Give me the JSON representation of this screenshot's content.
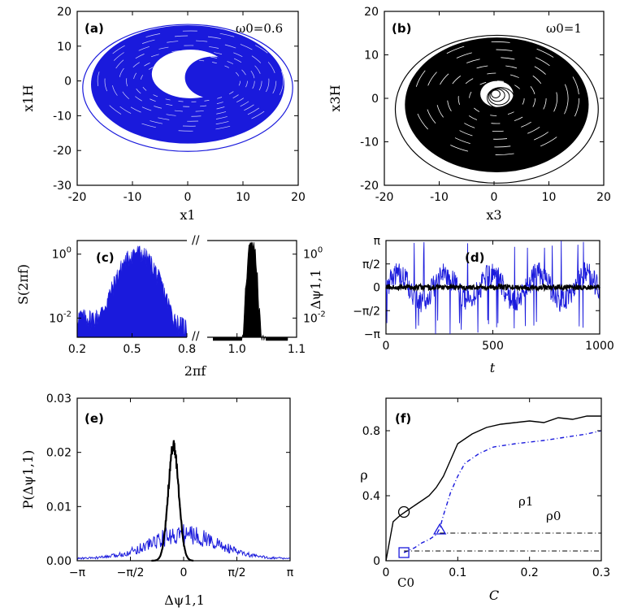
{
  "chart_data": [
    {
      "panel": "(a)",
      "type": "scatter",
      "annotation": "ω0=0.6",
      "xlabel": "x1",
      "ylabel": "x1H",
      "xlim": [
        -20,
        20
      ],
      "ylim": [
        -30,
        20
      ],
      "xticks": [
        "-20",
        "-10",
        "0",
        "10",
        "20"
      ],
      "yticks": [
        "-30",
        "-20",
        "-10",
        "0",
        "10",
        "20"
      ],
      "attractor_color": "#1a1adc",
      "series": [
        {
          "values": "phase-plane attractor, x1 in [-19,19], x1H in [-20,16]"
        }
      ]
    },
    {
      "panel": "(b)",
      "type": "scatter",
      "annotation": "ω0=1",
      "xlabel": "x3",
      "ylabel": "x3H",
      "xlim": [
        -20,
        20
      ],
      "ylim": [
        -20,
        20
      ],
      "xticks": [
        "-20",
        "-10",
        "0",
        "10",
        "20"
      ],
      "yticks": [
        "-20",
        "-10",
        "0",
        "10",
        "20"
      ],
      "attractor_color": "#000000",
      "series": [
        {
          "values": "phase-plane attractor, x3 in [-18,19], x3H in [-19,14]"
        }
      ]
    },
    {
      "panel": "(c)",
      "type": "line",
      "xlabel": "2πf",
      "ylabel": "S(2πf)",
      "ylabel_right": "",
      "yscale": "log",
      "xlim_left": [
        0.2,
        0.8
      ],
      "xlim_right": [
        0.95,
        1.1
      ],
      "xticks": [
        "0.2",
        "0.5",
        "0.8",
        "1.0",
        "1.1"
      ],
      "yticks_left": [
        "10",
        "10"
      ],
      "yticks_left_exp": [
        "0",
        "-2"
      ],
      "yticks_right": [
        "10",
        "10"
      ],
      "yticks_right_exp": [
        "0",
        "-2"
      ],
      "break_mark": "//",
      "series": [
        {
          "color": "#1a1adc",
          "peak": [
            0.53,
            1.5
          ],
          "x": [
            0.2,
            0.3,
            0.4,
            0.45,
            0.5,
            0.53,
            0.56,
            0.6,
            0.7,
            0.8
          ],
          "y": [
            0.008,
            0.02,
            0.06,
            0.15,
            0.5,
            1.5,
            0.3,
            0.08,
            0.02,
            0.006
          ]
        },
        {
          "color": "#000000",
          "peak": [
            1.025,
            3.0
          ],
          "x": [
            0.96,
            1.0,
            1.02,
            1.025,
            1.03,
            1.05,
            1.08
          ],
          "y": [
            0.003,
            0.01,
            0.2,
            3.0,
            0.2,
            0.01,
            0.003
          ]
        }
      ]
    },
    {
      "panel": "(d)",
      "type": "line",
      "xlabel": "t",
      "ylabel": "Δψ1,1",
      "xlim": [
        0,
        1000
      ],
      "xticks": [
        "0",
        "500",
        "1000"
      ],
      "yticks": [
        "π",
        "π/2",
        "0",
        "−π/2",
        "−π"
      ],
      "series": [
        {
          "color": "#1a1adc"
        },
        {
          "color": "#000000"
        }
      ]
    },
    {
      "panel": "(e)",
      "type": "line",
      "xlabel": "Δψ1,1",
      "ylabel": "P(Δψ1,1)",
      "xlim": [
        "−π",
        "π"
      ],
      "ylim": [
        0,
        0.03
      ],
      "xticks": [
        "−π",
        "−π/2",
        "0",
        "π/2",
        "π"
      ],
      "yticks": [
        "0.00",
        "0.01",
        "0.02",
        "0.03"
      ],
      "series": [
        {
          "color": "#000000",
          "x": [
            -0.9,
            -0.75,
            -0.6,
            -0.5,
            -0.4,
            -0.3,
            -0.2,
            -0.1,
            0.0,
            0.1,
            0.25
          ],
          "y": [
            0.0,
            0.003,
            0.009,
            0.015,
            0.02,
            0.022,
            0.02,
            0.014,
            0.006,
            0.002,
            0.0
          ]
        },
        {
          "color": "#1a1adc",
          "x": [
            -3.14,
            -2.5,
            -2.0,
            -1.5,
            -1.0,
            -0.5,
            -0.2,
            0.0,
            0.3,
            0.6,
            1.0,
            1.5,
            2.0,
            2.5,
            3.14
          ],
          "y": [
            0.0003,
            0.0005,
            0.001,
            0.0015,
            0.002,
            0.003,
            0.0045,
            0.005,
            0.004,
            0.003,
            0.002,
            0.0015,
            0.001,
            0.0005,
            0.0003
          ]
        }
      ]
    },
    {
      "panel": "(f)",
      "type": "line",
      "xlabel": "C",
      "ylabel": "ρ",
      "xlim": [
        0,
        0.3
      ],
      "ylim": [
        0,
        1.0
      ],
      "xticks": [
        "0",
        "0.1",
        "0.2",
        "0.3"
      ],
      "yticks": [
        "0",
        "0.4",
        "0.8"
      ],
      "annotations": [
        "ρ1",
        "ρ0",
        "C0"
      ],
      "levels": {
        "rho1": 0.17,
        "rho0": 0.06
      },
      "series": [
        {
          "color": "#000000",
          "style": "solid",
          "x": [
            0,
            0.01,
            0.02,
            0.03,
            0.04,
            0.05,
            0.06,
            0.07,
            0.08,
            0.09,
            0.1,
            0.12,
            0.14,
            0.16,
            0.18,
            0.2,
            0.22,
            0.24,
            0.26,
            0.28,
            0.3
          ],
          "y": [
            0,
            0.24,
            0.28,
            0.31,
            0.34,
            0.37,
            0.4,
            0.45,
            0.52,
            0.62,
            0.72,
            0.78,
            0.82,
            0.84,
            0.85,
            0.86,
            0.85,
            0.88,
            0.87,
            0.89,
            0.89
          ]
        },
        {
          "color": "#1a1adc",
          "style": "dashdot",
          "x": [
            0.025,
            0.04,
            0.05,
            0.06,
            0.07,
            0.075,
            0.08,
            0.09,
            0.1,
            0.11,
            0.13,
            0.15,
            0.18,
            0.2,
            0.22,
            0.25,
            0.28,
            0.3
          ],
          "y": [
            0.05,
            0.08,
            0.11,
            0.13,
            0.16,
            0.2,
            0.28,
            0.42,
            0.52,
            0.6,
            0.66,
            0.7,
            0.72,
            0.73,
            0.74,
            0.76,
            0.78,
            0.8
          ]
        }
      ],
      "markers": [
        {
          "shape": "circle",
          "x": 0.025,
          "y": 0.3,
          "color": "#000000"
        },
        {
          "shape": "triangle",
          "x": 0.075,
          "y": 0.19,
          "color": "#1a1adc"
        },
        {
          "shape": "square",
          "x": 0.025,
          "y": 0.05,
          "color": "#1a1adc"
        }
      ]
    }
  ]
}
